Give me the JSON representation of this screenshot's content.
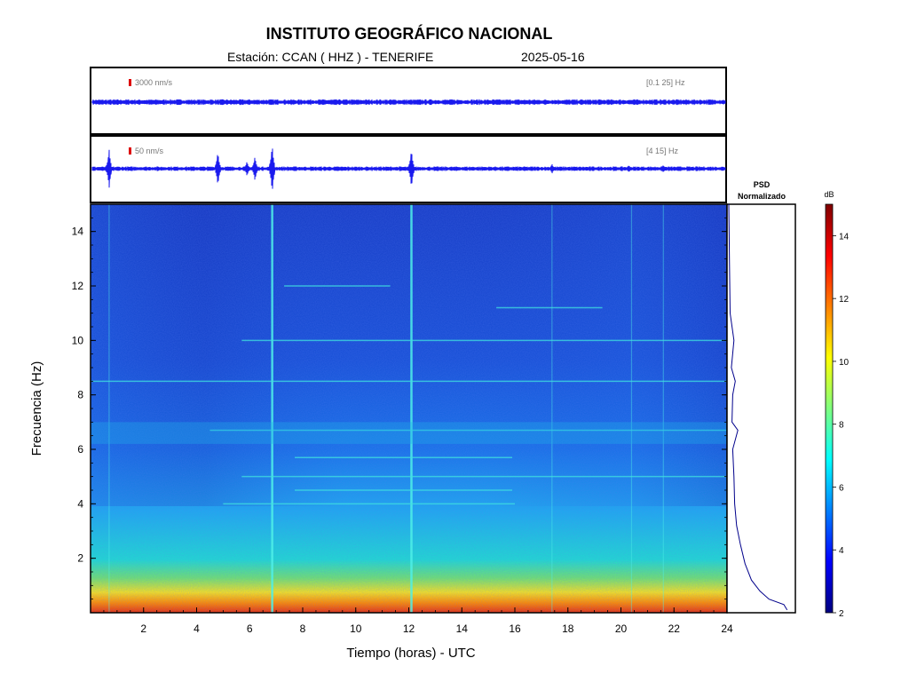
{
  "header": {
    "title": "INSTITUTO GEOGRÁFICO NACIONAL",
    "station": "Estación:  CCAN ( HHZ ) - TENERIFE",
    "date": "2025-05-16"
  },
  "colors": {
    "trace": "#1a1aee",
    "scale_marker": "#dd0000",
    "psd_line": "#00008b",
    "frame": "#000000"
  },
  "chart_data": [
    {
      "type": "line",
      "name": "waveform-broadband",
      "scale_label": "3000 nm/s",
      "band_label": "[0.1 25] Hz",
      "x_range": [
        0,
        24
      ],
      "events": []
    },
    {
      "type": "line",
      "name": "waveform-filtered",
      "scale_label": "50 nm/s",
      "band_label": "[4 15] Hz",
      "x_range": [
        0,
        24
      ],
      "events": [
        {
          "t": 0.7,
          "amp": 0.8
        },
        {
          "t": 4.8,
          "amp": 0.7
        },
        {
          "t": 5.9,
          "amp": 0.3
        },
        {
          "t": 6.2,
          "amp": 0.5
        },
        {
          "t": 6.85,
          "amp": 1.0
        },
        {
          "t": 12.1,
          "amp": 0.8
        },
        {
          "t": 17.4,
          "amp": 0.2
        },
        {
          "t": 20.3,
          "amp": 0.15
        },
        {
          "t": 21.6,
          "amp": 0.15
        }
      ]
    },
    {
      "type": "heatmap",
      "name": "spectrogram",
      "xlabel": "Tiempo (horas) - UTC",
      "ylabel": "Frecuencia  (Hz)",
      "xlim": [
        0,
        24
      ],
      "ylim": [
        0,
        15
      ],
      "xticks": [
        "2",
        "4",
        "6",
        "8",
        "10",
        "12",
        "14",
        "16",
        "18",
        "20",
        "22",
        "24"
      ],
      "yticks": [
        "2",
        "4",
        "6",
        "8",
        "10",
        "12",
        "14"
      ],
      "harmonic_lines": [
        {
          "f": 10.0,
          "t0": 5.7,
          "t1": 24
        },
        {
          "f": 8.5,
          "t0": 0,
          "t1": 24
        },
        {
          "f": 6.7,
          "t0": 4.5,
          "t1": 24
        },
        {
          "f": 5.7,
          "t0": 7.7,
          "t1": 15.9
        },
        {
          "f": 5.0,
          "t0": 5.7,
          "t1": 24
        },
        {
          "f": 4.5,
          "t0": 7.7,
          "t1": 15.9
        },
        {
          "f": 4.0,
          "t0": 5.0,
          "t1": 16.0
        },
        {
          "f": 11.2,
          "t0": 15.3,
          "t1": 19.3
        },
        {
          "f": 12.0,
          "t0": 7.3,
          "t1": 11.3
        }
      ],
      "vertical_events": [
        6.85,
        12.1,
        0.7,
        17.4,
        20.4,
        21.6
      ]
    },
    {
      "type": "line",
      "name": "psd-normalized",
      "title": "PSD\nNormalizado",
      "profile": [
        {
          "f": 0.1,
          "v": 0.9
        },
        {
          "f": 0.3,
          "v": 0.85
        },
        {
          "f": 0.5,
          "v": 0.62
        },
        {
          "f": 0.8,
          "v": 0.48
        },
        {
          "f": 1.2,
          "v": 0.35
        },
        {
          "f": 1.8,
          "v": 0.25
        },
        {
          "f": 2.5,
          "v": 0.18
        },
        {
          "f": 3.2,
          "v": 0.12
        },
        {
          "f": 4.0,
          "v": 0.09
        },
        {
          "f": 5.0,
          "v": 0.08
        },
        {
          "f": 6.0,
          "v": 0.06
        },
        {
          "f": 6.7,
          "v": 0.14
        },
        {
          "f": 7.0,
          "v": 0.05
        },
        {
          "f": 8.0,
          "v": 0.06
        },
        {
          "f": 8.5,
          "v": 0.1
        },
        {
          "f": 9.0,
          "v": 0.04
        },
        {
          "f": 10.0,
          "v": 0.08
        },
        {
          "f": 11.0,
          "v": 0.02
        },
        {
          "f": 13.0,
          "v": 0.01
        },
        {
          "f": 15.0,
          "v": 0.0
        }
      ]
    },
    {
      "type": "heatmap",
      "name": "colorbar",
      "label": "dB",
      "range": [
        2,
        15
      ],
      "ticks": [
        "2",
        "4",
        "6",
        "8",
        "10",
        "12",
        "14"
      ]
    }
  ]
}
